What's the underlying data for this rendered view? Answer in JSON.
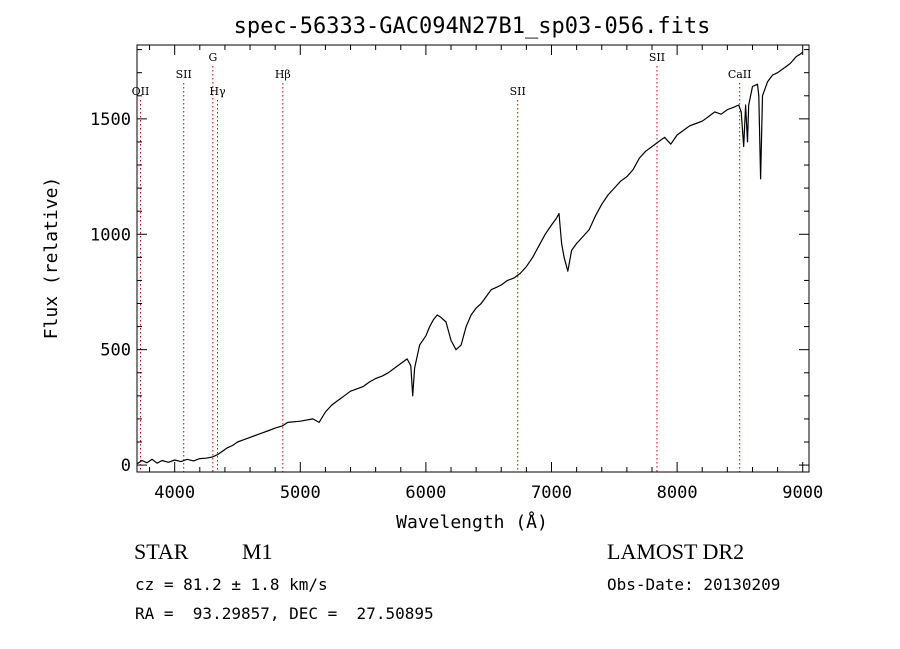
{
  "chart_data": {
    "type": "line",
    "title": "spec-56333-GAC094N27B1_sp03-056.fits",
    "xlabel": "Wavelength (Å)",
    "ylabel": "Flux (relative)",
    "xlim": [
      3700,
      9050
    ],
    "ylim": [
      -30,
      1820
    ],
    "x_ticks": [
      4000,
      5000,
      6000,
      7000,
      8000,
      9000
    ],
    "y_ticks": [
      0,
      500,
      1000,
      1500
    ],
    "grid": false,
    "line_color": "#000000",
    "marker_color": "#cc0000",
    "series": [
      {
        "points": [
          [
            3700,
            5
          ],
          [
            3740,
            20
          ],
          [
            3780,
            10
          ],
          [
            3820,
            25
          ],
          [
            3860,
            8
          ],
          [
            3900,
            20
          ],
          [
            3950,
            12
          ],
          [
            4000,
            22
          ],
          [
            4050,
            15
          ],
          [
            4100,
            25
          ],
          [
            4150,
            18
          ],
          [
            4200,
            28
          ],
          [
            4250,
            30
          ],
          [
            4300,
            35
          ],
          [
            4340,
            45
          ],
          [
            4380,
            60
          ],
          [
            4420,
            75
          ],
          [
            4460,
            85
          ],
          [
            4500,
            100
          ],
          [
            4550,
            110
          ],
          [
            4600,
            120
          ],
          [
            4650,
            130
          ],
          [
            4700,
            140
          ],
          [
            4750,
            150
          ],
          [
            4800,
            160
          ],
          [
            4860,
            170
          ],
          [
            4900,
            185
          ],
          [
            5000,
            190
          ],
          [
            5100,
            200
          ],
          [
            5150,
            185
          ],
          [
            5200,
            230
          ],
          [
            5250,
            260
          ],
          [
            5300,
            280
          ],
          [
            5350,
            300
          ],
          [
            5400,
            320
          ],
          [
            5450,
            330
          ],
          [
            5500,
            340
          ],
          [
            5550,
            360
          ],
          [
            5600,
            375
          ],
          [
            5650,
            385
          ],
          [
            5700,
            400
          ],
          [
            5750,
            420
          ],
          [
            5800,
            440
          ],
          [
            5850,
            460
          ],
          [
            5880,
            430
          ],
          [
            5895,
            300
          ],
          [
            5910,
            420
          ],
          [
            5950,
            520
          ],
          [
            6000,
            560
          ],
          [
            6030,
            600
          ],
          [
            6060,
            630
          ],
          [
            6090,
            650
          ],
          [
            6120,
            640
          ],
          [
            6160,
            620
          ],
          [
            6200,
            540
          ],
          [
            6240,
            500
          ],
          [
            6280,
            520
          ],
          [
            6320,
            600
          ],
          [
            6360,
            650
          ],
          [
            6400,
            680
          ],
          [
            6440,
            700
          ],
          [
            6480,
            730
          ],
          [
            6520,
            760
          ],
          [
            6560,
            770
          ],
          [
            6600,
            780
          ],
          [
            6650,
            800
          ],
          [
            6700,
            810
          ],
          [
            6750,
            830
          ],
          [
            6800,
            860
          ],
          [
            6850,
            900
          ],
          [
            6900,
            950
          ],
          [
            6950,
            1000
          ],
          [
            7000,
            1040
          ],
          [
            7040,
            1070
          ],
          [
            7060,
            1090
          ],
          [
            7080,
            960
          ],
          [
            7100,
            900
          ],
          [
            7130,
            840
          ],
          [
            7160,
            930
          ],
          [
            7200,
            960
          ],
          [
            7250,
            990
          ],
          [
            7300,
            1020
          ],
          [
            7350,
            1080
          ],
          [
            7400,
            1130
          ],
          [
            7450,
            1170
          ],
          [
            7500,
            1200
          ],
          [
            7550,
            1230
          ],
          [
            7600,
            1250
          ],
          [
            7650,
            1280
          ],
          [
            7700,
            1330
          ],
          [
            7750,
            1360
          ],
          [
            7800,
            1380
          ],
          [
            7850,
            1400
          ],
          [
            7900,
            1420
          ],
          [
            7950,
            1390
          ],
          [
            8000,
            1430
          ],
          [
            8050,
            1450
          ],
          [
            8100,
            1470
          ],
          [
            8150,
            1480
          ],
          [
            8200,
            1490
          ],
          [
            8250,
            1510
          ],
          [
            8300,
            1530
          ],
          [
            8350,
            1520
          ],
          [
            8400,
            1540
          ],
          [
            8450,
            1550
          ],
          [
            8490,
            1560
          ],
          [
            8510,
            1530
          ],
          [
            8530,
            1380
          ],
          [
            8545,
            1560
          ],
          [
            8560,
            1400
          ],
          [
            8570,
            1560
          ],
          [
            8600,
            1640
          ],
          [
            8640,
            1650
          ],
          [
            8650,
            1600
          ],
          [
            8665,
            1240
          ],
          [
            8680,
            1600
          ],
          [
            8720,
            1660
          ],
          [
            8760,
            1690
          ],
          [
            8800,
            1700
          ],
          [
            8850,
            1720
          ],
          [
            8900,
            1740
          ],
          [
            8950,
            1770
          ],
          [
            8980,
            1780
          ],
          [
            9000,
            1790
          ]
        ]
      }
    ],
    "line_markers": [
      {
        "label": "OII",
        "wavelength": 3728,
        "level": 1
      },
      {
        "label": "SII",
        "wavelength": 4072,
        "level": 2
      },
      {
        "label": "G",
        "wavelength": 4304,
        "level": 3
      },
      {
        "label": "Hγ",
        "wavelength": 4341,
        "level": 1
      },
      {
        "label": "Hβ",
        "wavelength": 4861,
        "level": 2
      },
      {
        "label": "SII",
        "wavelength": 6731,
        "level": 1
      },
      {
        "label": "SII",
        "wavelength": 7840,
        "level": 3
      },
      {
        "label": "CaII",
        "wavelength": 8498,
        "level": 2
      }
    ]
  },
  "info": {
    "class_label": "STAR",
    "subclass_label": "M1",
    "survey": "LAMOST DR2",
    "cz_text": "cz = 81.2 ± 1.8 km/s",
    "obs_date_text": "Obs-Date: 20130209",
    "coords_text": "RA =  93.29857, DEC =  27.50895"
  }
}
